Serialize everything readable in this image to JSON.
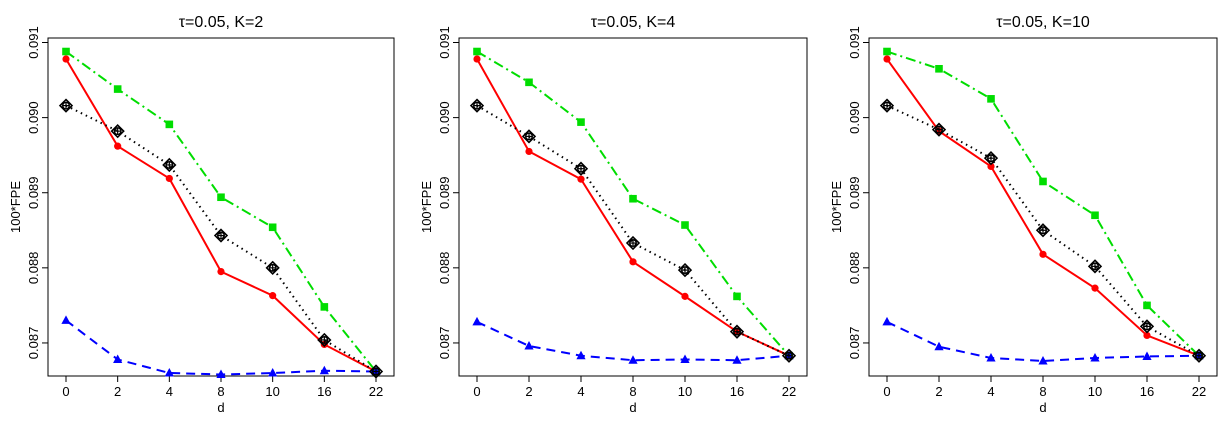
{
  "chart_data": [
    {
      "type": "line",
      "title": "τ=0.05, K=2",
      "xlabel": "d",
      "ylabel": "100*FPE",
      "categories": [
        "0",
        "2",
        "4",
        "8",
        "10",
        "16",
        "22"
      ],
      "yticks": [
        "0.087",
        "0.088",
        "0.089",
        "0.090",
        "0.091"
      ],
      "ylim": [
        0.08656,
        0.09106
      ],
      "grid": false,
      "series": [
        {
          "color": "#ff0000",
          "marker": "circle",
          "dash": "solid",
          "values": [
            0.09078,
            0.08962,
            0.08919,
            0.08795,
            0.08763,
            0.08698,
            0.08662
          ]
        },
        {
          "color": "#00dd00",
          "marker": "square",
          "dash": "dashdot",
          "values": [
            0.09088,
            0.09038,
            0.08991,
            0.08894,
            0.08854,
            0.08748,
            0.08662
          ]
        },
        {
          "color": "#0000ff",
          "marker": "triangle",
          "dash": "dashed",
          "values": [
            0.0873,
            0.08678,
            0.0866,
            0.08658,
            0.0866,
            0.08663,
            0.08662
          ]
        },
        {
          "color": "#000000",
          "marker": "diamond",
          "dash": "dotted",
          "values": [
            0.09016,
            0.08982,
            0.08937,
            0.08843,
            0.088,
            0.08704,
            0.08662
          ]
        }
      ]
    },
    {
      "type": "line",
      "title": "τ=0.05, K=4",
      "xlabel": "d",
      "ylabel": "100*FPE",
      "categories": [
        "0",
        "2",
        "4",
        "8",
        "10",
        "16",
        "22"
      ],
      "yticks": [
        "0.087",
        "0.088",
        "0.089",
        "0.090",
        "0.091"
      ],
      "ylim": [
        0.08656,
        0.09106
      ],
      "grid": false,
      "series": [
        {
          "color": "#ff0000",
          "marker": "circle",
          "dash": "solid",
          "values": [
            0.09078,
            0.08955,
            0.08918,
            0.08808,
            0.08762,
            0.08715,
            0.08683
          ]
        },
        {
          "color": "#00dd00",
          "marker": "square",
          "dash": "dashdot",
          "values": [
            0.09088,
            0.09047,
            0.08994,
            0.08892,
            0.08857,
            0.08762,
            0.08683
          ]
        },
        {
          "color": "#0000ff",
          "marker": "triangle",
          "dash": "dashed",
          "values": [
            0.08728,
            0.08696,
            0.08683,
            0.08677,
            0.08678,
            0.08677,
            0.08683
          ]
        },
        {
          "color": "#000000",
          "marker": "diamond",
          "dash": "dotted",
          "values": [
            0.09016,
            0.08975,
            0.08932,
            0.08833,
            0.08797,
            0.08715,
            0.08683
          ]
        }
      ]
    },
    {
      "type": "line",
      "title": "τ=0.05, K=10",
      "xlabel": "d",
      "ylabel": "100*FPE",
      "categories": [
        "0",
        "2",
        "4",
        "8",
        "10",
        "16",
        "22"
      ],
      "yticks": [
        "0.087",
        "0.088",
        "0.089",
        "0.090",
        "0.091"
      ],
      "ylim": [
        0.08656,
        0.09106
      ],
      "grid": false,
      "series": [
        {
          "color": "#ff0000",
          "marker": "circle",
          "dash": "solid",
          "values": [
            0.09078,
            0.08982,
            0.08935,
            0.08818,
            0.08773,
            0.0871,
            0.08683
          ]
        },
        {
          "color": "#00dd00",
          "marker": "square",
          "dash": "dashdot",
          "values": [
            0.09088,
            0.09065,
            0.09025,
            0.08915,
            0.0887,
            0.0875,
            0.08683
          ]
        },
        {
          "color": "#0000ff",
          "marker": "triangle",
          "dash": "dashed",
          "values": [
            0.08728,
            0.08695,
            0.0868,
            0.08676,
            0.0868,
            0.08682,
            0.08683
          ]
        },
        {
          "color": "#000000",
          "marker": "diamond",
          "dash": "dotted",
          "values": [
            0.09016,
            0.08984,
            0.08946,
            0.0885,
            0.08802,
            0.08722,
            0.08683
          ]
        }
      ]
    }
  ]
}
